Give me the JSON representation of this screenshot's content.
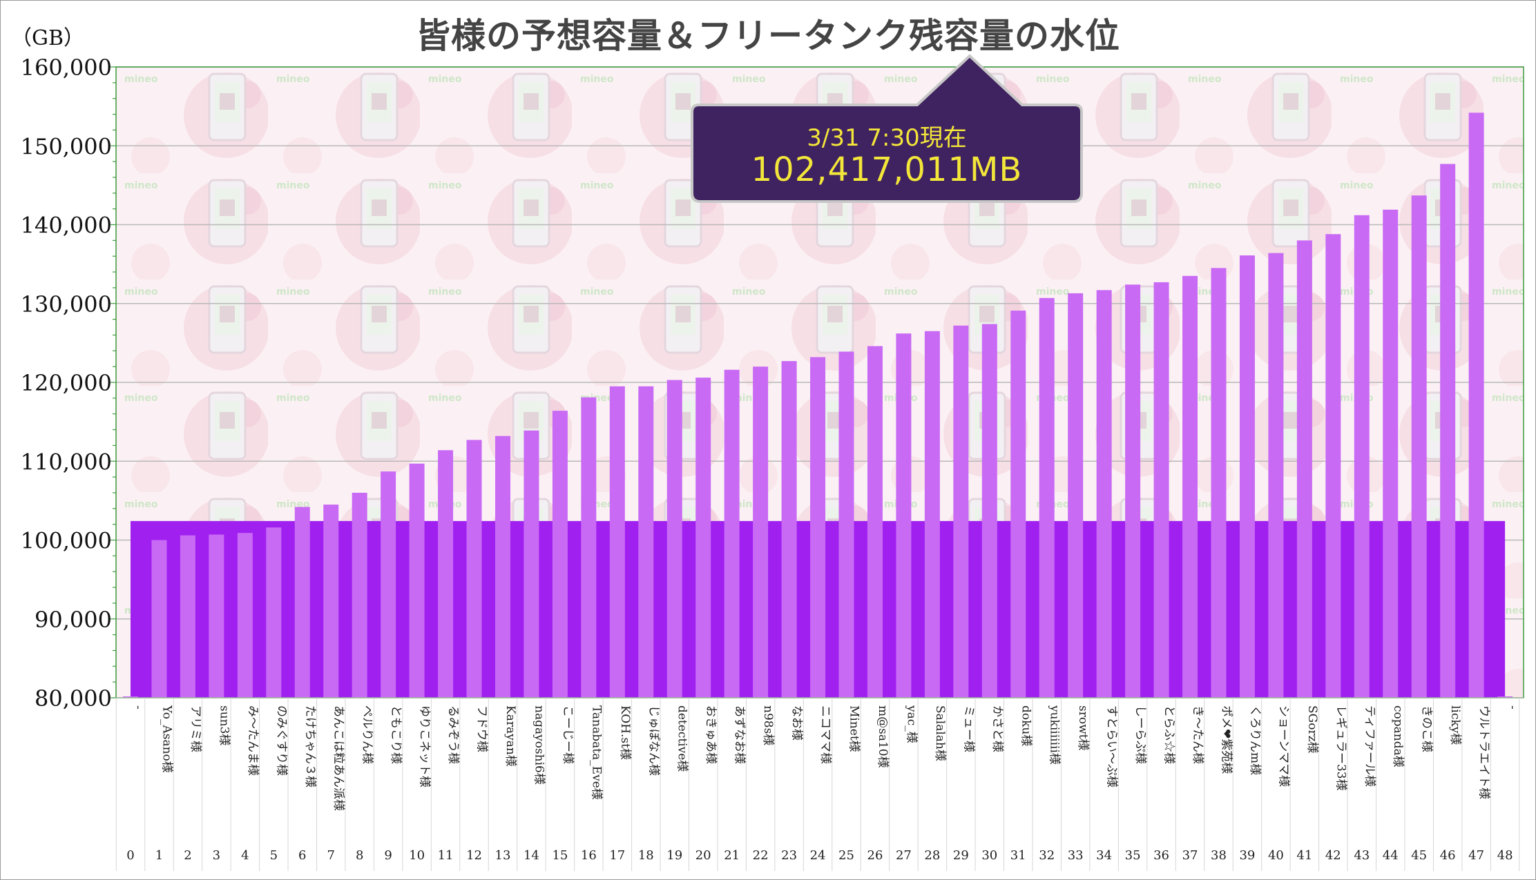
{
  "chart_data": {
    "type": "bar",
    "title": "皆様の予想容量＆フリータンク残容量の水位",
    "unit_label": "（GB）",
    "ylim": [
      80000,
      160000
    ],
    "yticks": [
      "80,000",
      "90,000",
      "100,000",
      "110,000",
      "120,000",
      "130,000",
      "140,000",
      "150,000",
      "160,000"
    ],
    "indices": [
      "0",
      "1",
      "2",
      "3",
      "4",
      "5",
      "6",
      "7",
      "8",
      "9",
      "10",
      "11",
      "12",
      "13",
      "14",
      "15",
      "16",
      "17",
      "18",
      "19",
      "20",
      "21",
      "22",
      "23",
      "24",
      "25",
      "26",
      "27",
      "28",
      "29",
      "30",
      "31",
      "32",
      "33",
      "34",
      "35",
      "36",
      "37",
      "38",
      "39",
      "40",
      "41",
      "42",
      "43",
      "44",
      "45",
      "46",
      "47",
      "48"
    ],
    "categories": [
      "-",
      "Yo_Asano様",
      "アリミ様",
      "sun3様",
      "み～たんま様",
      "のみぐすり様",
      "たけちゃん３様",
      "あんこは粒あん派様",
      "ぺルりん様",
      "ともこり様",
      "ゆりこネット様",
      "るみぞう様",
      "フドウ様",
      "Karayan様",
      "nagayoshi6様",
      "こーじー様",
      "Tanabata_Eve様",
      "KOH.st様",
      "じゅぽなん様",
      "detective様",
      "おきゅあ様",
      "あずなお様",
      "n98s様",
      "なお様",
      "ニコママ様",
      "Minet様",
      "m@sa10様",
      "yac_様",
      "Salalah様",
      "ミュー様",
      "かさと様",
      "doku様",
      "yukiiiiiii様",
      "srowt様",
      "すとらい～ぷ様",
      "しーらぷ様",
      "とらふ☆様",
      "き～たん様",
      "ポメ❤紫苑様",
      "くろりんm様",
      "ショーンママ様",
      "SGorz様",
      "レギュラー33様",
      "ティファール様",
      "copanda様",
      "きのこ様",
      "licky様",
      "ウルトラエイト様",
      "-"
    ],
    "values": [
      80000,
      100000,
      100600,
      100700,
      100900,
      101600,
      104200,
      104500,
      106000,
      108700,
      109700,
      111400,
      112700,
      113200,
      113900,
      116400,
      118100,
      119500,
      119500,
      120300,
      120600,
      121600,
      122000,
      122700,
      123200,
      123900,
      124600,
      126200,
      126500,
      127200,
      127400,
      129100,
      130700,
      131300,
      131700,
      132400,
      132700,
      133500,
      134500,
      136100,
      136400,
      138000,
      138800,
      141200,
      141900,
      143700,
      147700,
      154200,
      80000
    ],
    "water_level": 102417,
    "grid": true,
    "colors": {
      "bars": "#c96af5",
      "water": "#a020f0",
      "grid": "#b8b8b8",
      "axis": "#3a9a3a",
      "callout": "#3f2260",
      "callout_text": "#f3e63a"
    },
    "annotation": {
      "line1": "3/31 7:30現在",
      "line2": "102,417,011MB"
    },
    "background_watermark": "mineo"
  }
}
